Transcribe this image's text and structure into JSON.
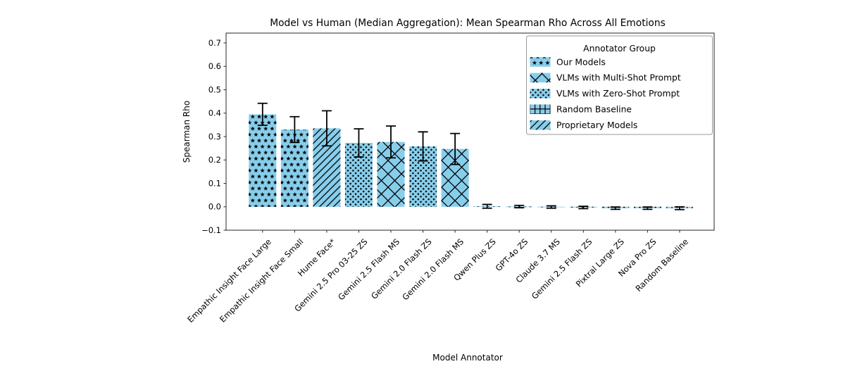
{
  "figure": {
    "background": "#ffffff",
    "bar_fill": "#87CEEB",
    "hatch_color": "#000000",
    "error_color": "#000000",
    "spine_color": "#262626",
    "legend_border": "#999999"
  },
  "chart_data": {
    "type": "bar",
    "title": "Model vs Human (Median Aggregation): Mean Spearman Rho Across All Emotions",
    "xlabel": "Model Annotator",
    "ylabel": "Spearman Rho",
    "ylim": [
      -0.1,
      0.742
    ],
    "yticks": [
      -0.1,
      0.0,
      0.1,
      0.2,
      0.3,
      0.4,
      0.5,
      0.6,
      0.7
    ],
    "grid": false,
    "legend": {
      "title": "Annotator Group",
      "position": "upper right",
      "entries": [
        {
          "label": "Our Models",
          "hatch": "stars"
        },
        {
          "label": "VLMs with Multi-Shot Prompt",
          "hatch": "xcross"
        },
        {
          "label": "VLMs with Zero-Shot Prompt",
          "hatch": "dots"
        },
        {
          "label": "Random Baseline",
          "hatch": "plus"
        },
        {
          "label": "Proprietary Models",
          "hatch": "diag"
        }
      ]
    },
    "bars": [
      {
        "label": "Empathic Insight Face Large",
        "value": 0.395,
        "error": 0.047,
        "group": "Our Models",
        "hatch": "stars"
      },
      {
        "label": "Empathic Insight Face Small",
        "value": 0.33,
        "error": 0.055,
        "group": "Our Models",
        "hatch": "stars"
      },
      {
        "label": "Hume Face*",
        "value": 0.335,
        "error": 0.075,
        "group": "Proprietary Models",
        "hatch": "diag"
      },
      {
        "label": "Gemini 2.5 Pro 03-25 ZS",
        "value": 0.273,
        "error": 0.06,
        "group": "VLMs with Zero-Shot Prompt",
        "hatch": "dots"
      },
      {
        "label": "Gemini 2.5 Flash MS",
        "value": 0.277,
        "error": 0.068,
        "group": "VLMs with Multi-Shot Prompt",
        "hatch": "xcross"
      },
      {
        "label": "Gemini 2.0 Flash ZS",
        "value": 0.258,
        "error": 0.062,
        "group": "VLMs with Zero-Shot Prompt",
        "hatch": "dots"
      },
      {
        "label": "Gemini 2.0 Flash MS",
        "value": 0.247,
        "error": 0.066,
        "group": "VLMs with Multi-Shot Prompt",
        "hatch": "xcross"
      },
      {
        "label": "Qwen Plus ZS",
        "value": 0.002,
        "error": 0.008,
        "group": "VLMs with Zero-Shot Prompt",
        "hatch": "dots"
      },
      {
        "label": "GPT-4o ZS",
        "value": 0.001,
        "error": 0.005,
        "group": "VLMs with Zero-Shot Prompt",
        "hatch": "dots"
      },
      {
        "label": "Claude 3.7 MS",
        "value": -0.001,
        "error": 0.005,
        "group": "VLMs with Multi-Shot Prompt",
        "hatch": "xcross"
      },
      {
        "label": "Gemini 2.5 Flash ZS",
        "value": -0.003,
        "error": 0.005,
        "group": "VLMs with Zero-Shot Prompt",
        "hatch": "dots"
      },
      {
        "label": "Pixtral Large ZS",
        "value": -0.006,
        "error": 0.005,
        "group": "VLMs with Zero-Shot Prompt",
        "hatch": "dots"
      },
      {
        "label": "Nova Pro ZS",
        "value": -0.006,
        "error": 0.005,
        "group": "VLMs with Zero-Shot Prompt",
        "hatch": "dots"
      },
      {
        "label": "Random Baseline",
        "value": -0.006,
        "error": 0.006,
        "group": "Random Baseline",
        "hatch": "plus"
      }
    ]
  }
}
